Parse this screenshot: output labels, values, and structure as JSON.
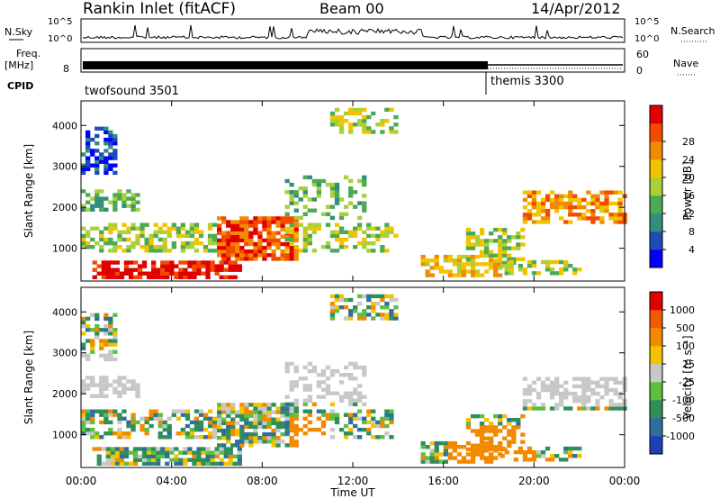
{
  "header": {
    "station": "Rankin Inlet (fitACF)",
    "beam": "Beam 00",
    "date": "14/Apr/2012"
  },
  "noise_panel": {
    "left_label": "N.Sky",
    "right_label": "N.Search",
    "left_ticks": [
      "10^5",
      "10^0"
    ],
    "right_ticks": [
      "10^5",
      "10^0"
    ]
  },
  "freq_panel": {
    "left_label_top": "Freq.",
    "left_label_unit": "[MHz]",
    "left_tick": "8",
    "right_label": "Nave",
    "right_ticks": [
      "60",
      "0"
    ]
  },
  "cpid_panel": {
    "label": "CPID",
    "segments": [
      {
        "name": "twofsound 3501",
        "start": "00:00",
        "end": "18:00"
      },
      {
        "name": "themis 3300",
        "start": "18:00",
        "end": "24:00"
      }
    ]
  },
  "chart_data": [
    {
      "type": "heatmap",
      "quantity": "Power",
      "ylabel": "Slant Range [km]",
      "ylim": [
        200,
        4600
      ],
      "yticks": [
        "1000",
        "2000",
        "3000",
        "4000"
      ],
      "xlim": [
        0,
        24
      ],
      "colorbar": {
        "label": "Power [dB]",
        "range": [
          0,
          32
        ],
        "tick_labels": [
          "4",
          "8",
          "12",
          "16",
          "20",
          "24",
          "28"
        ],
        "colors": [
          "#0000ff",
          "#1f4bb8",
          "#2f8f7a",
          "#4caa55",
          "#a8d03a",
          "#f2c400",
          "#f28a00",
          "#f24a00",
          "#e00000"
        ]
      }
    },
    {
      "type": "heatmap",
      "quantity": "Velocity",
      "ylabel": "Slant Range [km]",
      "xlabel": "Time UT",
      "ylim": [
        200,
        4600
      ],
      "yticks": [
        "1000",
        "2000",
        "3000",
        "4000"
      ],
      "xlim": [
        0,
        24
      ],
      "xtick_labels": [
        "00:00",
        "04:00",
        "08:00",
        "12:00",
        "16:00",
        "20:00",
        "00:00"
      ],
      "colorbar": {
        "label": "Velocity [m s⁻¹]",
        "tick_labels": [
          "1000",
          "500",
          "100",
          "25",
          "-25",
          "-100",
          "-500",
          "-1000"
        ],
        "colors": [
          "#1f3fb8",
          "#2f6fa0",
          "#2f8f5a",
          "#5cc040",
          "#c8c8c8",
          "#f2c400",
          "#f28a00",
          "#f25a00",
          "#e00000"
        ]
      }
    }
  ]
}
